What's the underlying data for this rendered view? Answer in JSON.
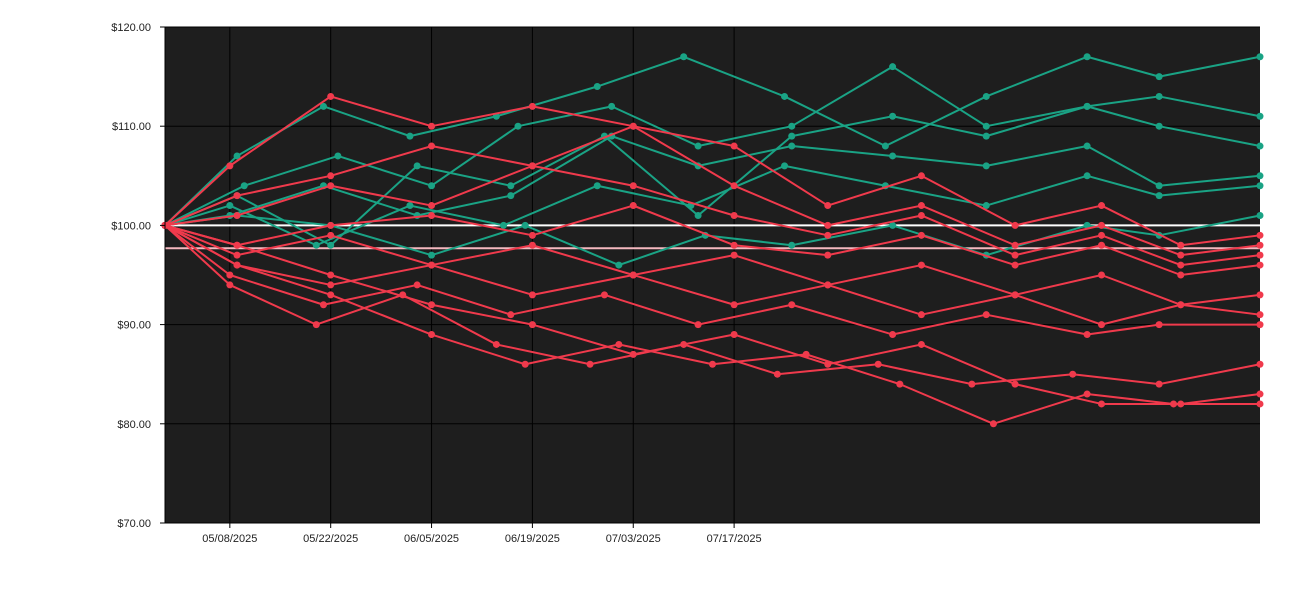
{
  "colors": {
    "plot_background": "#1e1e1e",
    "up_series": "#1aa385",
    "down_series": "#f03a4c",
    "reference_line": "#ffffff",
    "mean_line": "#f4b8bf",
    "gridline": "#000000"
  },
  "chart_data": {
    "type": "line",
    "title": "",
    "xlabel": "",
    "ylabel": "",
    "x_start": "04/29/2025",
    "x_end": "09/28/2025",
    "ylim": [
      70,
      120
    ],
    "grid": true,
    "y_ticks": [
      {
        "value": 70,
        "label": "$70.00"
      },
      {
        "value": 80,
        "label": "$80.00"
      },
      {
        "value": 90,
        "label": "$90.00"
      },
      {
        "value": 100,
        "label": "$100.00"
      },
      {
        "value": 110,
        "label": "$110.00"
      },
      {
        "value": 120,
        "label": "$120.00"
      }
    ],
    "x_ticks": [
      {
        "date": "05/08/2025",
        "label": "05/08/2025"
      },
      {
        "date": "05/22/2025",
        "label": "05/22/2025"
      },
      {
        "date": "06/05/2025",
        "label": "06/05/2025"
      },
      {
        "date": "06/19/2025",
        "label": "06/19/2025"
      },
      {
        "date": "07/03/2025",
        "label": "07/03/2025"
      },
      {
        "date": "07/17/2025",
        "label": "07/17/2025"
      }
    ],
    "reference_lines": [
      {
        "value": 100,
        "color": "#ffffff"
      },
      {
        "value": 97.7,
        "color": "#f4b8bf"
      }
    ],
    "series": [
      {
        "end_color": "up",
        "points": [
          [
            "04/29/2025",
            100
          ],
          [
            "05/09/2025",
            107
          ],
          [
            "05/21/2025",
            112
          ],
          [
            "06/02/2025",
            109
          ],
          [
            "06/14/2025",
            111
          ],
          [
            "06/28/2025",
            114
          ],
          [
            "07/10/2025",
            117
          ],
          [
            "07/24/2025",
            113
          ],
          [
            "08/07/2025",
            108
          ],
          [
            "08/21/2025",
            113
          ],
          [
            "09/04/2025",
            117
          ],
          [
            "09/14/2025",
            115
          ],
          [
            "09/28/2025",
            117
          ]
        ]
      },
      {
        "end_color": "up",
        "points": [
          [
            "04/29/2025",
            100
          ],
          [
            "05/10/2025",
            104
          ],
          [
            "05/23/2025",
            107
          ],
          [
            "06/05/2025",
            104
          ],
          [
            "06/17/2025",
            110
          ],
          [
            "06/30/2025",
            112
          ],
          [
            "07/12/2025",
            108
          ],
          [
            "07/25/2025",
            110
          ],
          [
            "08/08/2025",
            116
          ],
          [
            "08/21/2025",
            110
          ],
          [
            "09/04/2025",
            112
          ],
          [
            "09/14/2025",
            113
          ],
          [
            "09/28/2025",
            111
          ]
        ]
      },
      {
        "end_color": "up",
        "points": [
          [
            "04/29/2025",
            100
          ],
          [
            "05/09/2025",
            103
          ],
          [
            "05/22/2025",
            98
          ],
          [
            "06/03/2025",
            106
          ],
          [
            "06/16/2025",
            104
          ],
          [
            "06/29/2025",
            109
          ],
          [
            "07/12/2025",
            101
          ],
          [
            "07/25/2025",
            109
          ],
          [
            "08/08/2025",
            111
          ],
          [
            "08/21/2025",
            109
          ],
          [
            "09/04/2025",
            112
          ],
          [
            "09/14/2025",
            110
          ],
          [
            "09/28/2025",
            108
          ]
        ]
      },
      {
        "end_color": "up",
        "points": [
          [
            "04/29/2025",
            100
          ],
          [
            "05/08/2025",
            101
          ],
          [
            "05/21/2025",
            104
          ],
          [
            "06/03/2025",
            101
          ],
          [
            "06/16/2025",
            103
          ],
          [
            "06/30/2025",
            109
          ],
          [
            "07/12/2025",
            106
          ],
          [
            "07/25/2025",
            108
          ],
          [
            "08/08/2025",
            107
          ],
          [
            "08/21/2025",
            106
          ],
          [
            "09/04/2025",
            108
          ],
          [
            "09/14/2025",
            104
          ],
          [
            "09/28/2025",
            105
          ]
        ]
      },
      {
        "end_color": "up",
        "points": [
          [
            "04/29/2025",
            100
          ],
          [
            "05/08/2025",
            102
          ],
          [
            "05/20/2025",
            98
          ],
          [
            "06/02/2025",
            102
          ],
          [
            "06/15/2025",
            100
          ],
          [
            "06/28/2025",
            104
          ],
          [
            "07/11/2025",
            102
          ],
          [
            "07/24/2025",
            106
          ],
          [
            "08/07/2025",
            104
          ],
          [
            "08/21/2025",
            102
          ],
          [
            "09/04/2025",
            105
          ],
          [
            "09/14/2025",
            103
          ],
          [
            "09/28/2025",
            104
          ]
        ]
      },
      {
        "end_color": "up",
        "points": [
          [
            "04/29/2025",
            100
          ],
          [
            "05/09/2025",
            101
          ],
          [
            "05/22/2025",
            100
          ],
          [
            "06/05/2025",
            97
          ],
          [
            "06/18/2025",
            100
          ],
          [
            "07/01/2025",
            96
          ],
          [
            "07/13/2025",
            99
          ],
          [
            "07/25/2025",
            98
          ],
          [
            "08/08/2025",
            100
          ],
          [
            "08/21/2025",
            97
          ],
          [
            "09/04/2025",
            100
          ],
          [
            "09/14/2025",
            99
          ],
          [
            "09/28/2025",
            101
          ]
        ]
      },
      {
        "end_color": "down",
        "points": [
          [
            "04/29/2025",
            100
          ],
          [
            "05/08/2025",
            106
          ],
          [
            "05/22/2025",
            113
          ],
          [
            "06/05/2025",
            110
          ],
          [
            "06/19/2025",
            112
          ],
          [
            "07/03/2025",
            110
          ],
          [
            "07/17/2025",
            108
          ],
          [
            "07/30/2025",
            102
          ],
          [
            "08/12/2025",
            105
          ],
          [
            "08/25/2025",
            100
          ],
          [
            "09/06/2025",
            102
          ],
          [
            "09/17/2025",
            98
          ],
          [
            "09/28/2025",
            99
          ]
        ]
      },
      {
        "end_color": "down",
        "points": [
          [
            "04/29/2025",
            100
          ],
          [
            "05/09/2025",
            103
          ],
          [
            "05/22/2025",
            105
          ],
          [
            "06/05/2025",
            108
          ],
          [
            "06/19/2025",
            106
          ],
          [
            "07/03/2025",
            110
          ],
          [
            "07/17/2025",
            104
          ],
          [
            "07/30/2025",
            100
          ],
          [
            "08/12/2025",
            102
          ],
          [
            "08/25/2025",
            98
          ],
          [
            "09/06/2025",
            100
          ],
          [
            "09/17/2025",
            97
          ],
          [
            "09/28/2025",
            98
          ]
        ]
      },
      {
        "end_color": "down",
        "points": [
          [
            "04/29/2025",
            100
          ],
          [
            "05/09/2025",
            101
          ],
          [
            "05/22/2025",
            104
          ],
          [
            "06/05/2025",
            102
          ],
          [
            "06/19/2025",
            106
          ],
          [
            "07/03/2025",
            104
          ],
          [
            "07/17/2025",
            101
          ],
          [
            "07/30/2025",
            99
          ],
          [
            "08/12/2025",
            101
          ],
          [
            "08/25/2025",
            97
          ],
          [
            "09/06/2025",
            99
          ],
          [
            "09/17/2025",
            96
          ],
          [
            "09/28/2025",
            97
          ]
        ]
      },
      {
        "end_color": "down",
        "points": [
          [
            "04/29/2025",
            100
          ],
          [
            "05/09/2025",
            98
          ],
          [
            "05/22/2025",
            100
          ],
          [
            "06/05/2025",
            101
          ],
          [
            "06/19/2025",
            99
          ],
          [
            "07/03/2025",
            102
          ],
          [
            "07/17/2025",
            98
          ],
          [
            "07/30/2025",
            97
          ],
          [
            "08/12/2025",
            99
          ],
          [
            "08/25/2025",
            96
          ],
          [
            "09/06/2025",
            98
          ],
          [
            "09/17/2025",
            95
          ],
          [
            "09/28/2025",
            96
          ]
        ]
      },
      {
        "end_color": "down",
        "points": [
          [
            "04/29/2025",
            100
          ],
          [
            "05/09/2025",
            97
          ],
          [
            "05/22/2025",
            99
          ],
          [
            "06/05/2025",
            96
          ],
          [
            "06/19/2025",
            98
          ],
          [
            "07/03/2025",
            95
          ],
          [
            "07/17/2025",
            97
          ],
          [
            "07/30/2025",
            94
          ],
          [
            "08/12/2025",
            96
          ],
          [
            "08/25/2025",
            93
          ],
          [
            "09/06/2025",
            95
          ],
          [
            "09/17/2025",
            92
          ],
          [
            "09/28/2025",
            93
          ]
        ]
      },
      {
        "end_color": "down",
        "points": [
          [
            "04/29/2025",
            100
          ],
          [
            "05/09/2025",
            96
          ],
          [
            "05/22/2025",
            94
          ],
          [
            "06/05/2025",
            96
          ],
          [
            "06/19/2025",
            93
          ],
          [
            "07/03/2025",
            95
          ],
          [
            "07/17/2025",
            92
          ],
          [
            "07/30/2025",
            94
          ],
          [
            "08/12/2025",
            91
          ],
          [
            "08/25/2025",
            93
          ],
          [
            "09/06/2025",
            90
          ],
          [
            "09/17/2025",
            92
          ],
          [
            "09/28/2025",
            91
          ]
        ]
      },
      {
        "end_color": "down",
        "points": [
          [
            "04/29/2025",
            100
          ],
          [
            "05/08/2025",
            95
          ],
          [
            "05/21/2025",
            92
          ],
          [
            "06/03/2025",
            94
          ],
          [
            "06/16/2025",
            91
          ],
          [
            "06/29/2025",
            93
          ],
          [
            "07/12/2025",
            90
          ],
          [
            "07/25/2025",
            92
          ],
          [
            "08/08/2025",
            89
          ],
          [
            "08/21/2025",
            91
          ],
          [
            "09/04/2025",
            89
          ],
          [
            "09/14/2025",
            90
          ],
          [
            "09/28/2025",
            90
          ]
        ]
      },
      {
        "end_color": "down",
        "points": [
          [
            "04/29/2025",
            100
          ],
          [
            "05/08/2025",
            94
          ],
          [
            "05/20/2025",
            90
          ],
          [
            "06/01/2025",
            93
          ],
          [
            "06/14/2025",
            88
          ],
          [
            "06/27/2025",
            86
          ],
          [
            "07/10/2025",
            88
          ],
          [
            "07/23/2025",
            85
          ],
          [
            "08/06/2025",
            86
          ],
          [
            "08/19/2025",
            84
          ],
          [
            "09/02/2025",
            85
          ],
          [
            "09/14/2025",
            84
          ],
          [
            "09/28/2025",
            86
          ]
        ]
      },
      {
        "end_color": "down",
        "points": [
          [
            "04/29/2025",
            100
          ],
          [
            "05/09/2025",
            96
          ],
          [
            "05/22/2025",
            93
          ],
          [
            "06/05/2025",
            89
          ],
          [
            "06/18/2025",
            86
          ],
          [
            "07/01/2025",
            88
          ],
          [
            "07/14/2025",
            86
          ],
          [
            "07/27/2025",
            87
          ],
          [
            "08/09/2025",
            84
          ],
          [
            "08/22/2025",
            80
          ],
          [
            "09/04/2025",
            83
          ],
          [
            "09/16/2025",
            82
          ],
          [
            "09/28/2025",
            82
          ]
        ]
      },
      {
        "end_color": "down",
        "points": [
          [
            "04/29/2025",
            100
          ],
          [
            "05/09/2025",
            98
          ],
          [
            "05/22/2025",
            95
          ],
          [
            "06/05/2025",
            92
          ],
          [
            "06/19/2025",
            90
          ],
          [
            "07/03/2025",
            87
          ],
          [
            "07/17/2025",
            89
          ],
          [
            "07/30/2025",
            86
          ],
          [
            "08/12/2025",
            88
          ],
          [
            "08/25/2025",
            84
          ],
          [
            "09/06/2025",
            82
          ],
          [
            "09/17/2025",
            82
          ],
          [
            "09/28/2025",
            83
          ]
        ]
      }
    ]
  }
}
